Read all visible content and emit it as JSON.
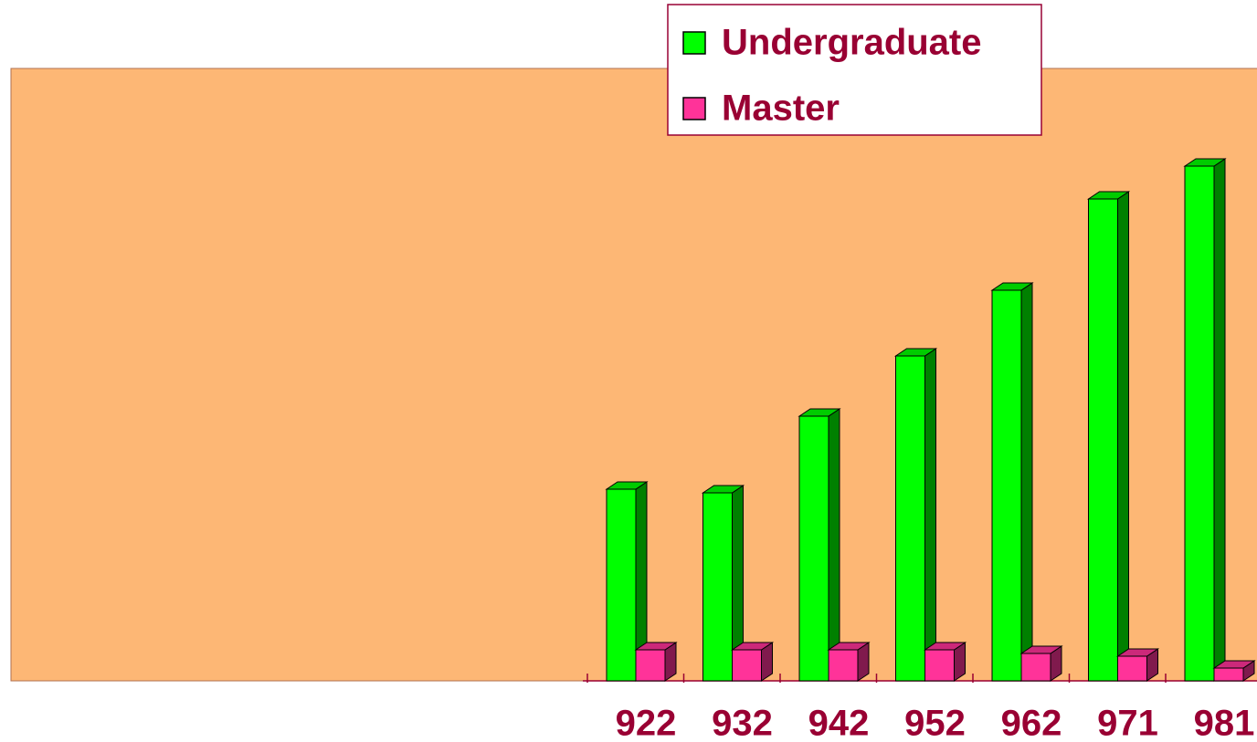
{
  "chart_data": {
    "type": "bar3d",
    "categories": [
      "922",
      "932",
      "942",
      "952",
      "962",
      "971",
      "981"
    ],
    "series": [
      {
        "name": "Undergraduate",
        "color": "#00ff00",
        "values": [
          210,
          206,
          290,
          356,
          428,
          528,
          564
        ]
      },
      {
        "name": "Master",
        "color": "#ff3399",
        "values": [
          34,
          34,
          34,
          34,
          30,
          27,
          14
        ]
      }
    ],
    "ylim": [
      0,
      600
    ]
  }
}
